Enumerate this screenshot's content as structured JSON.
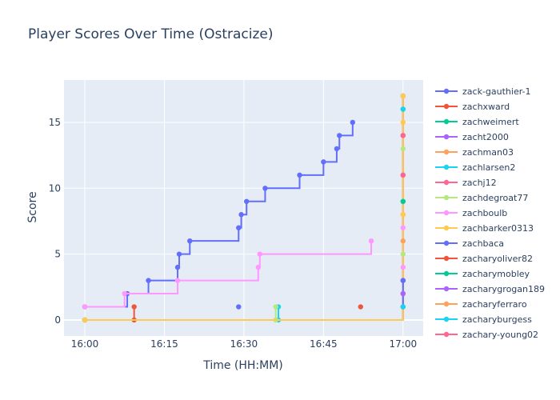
{
  "chart_data": {
    "type": "line",
    "line_shape": "step",
    "title": "Player Scores Over Time (Ostracize)",
    "xlabel": "Time (HH:MM)",
    "ylabel": "Score",
    "x_ticks": [
      "16:00",
      "16:15",
      "16:30",
      "16:45",
      "17:00"
    ],
    "x_range_minutes": [
      -4,
      4
    ],
    "y_ticks": [
      0,
      5,
      10,
      15
    ],
    "ylim": [
      -1.2,
      18
    ],
    "grid": true,
    "legend_position": "right",
    "plot_background": "#e5ecf6",
    "series": [
      {
        "name": "zack-gauthier-1",
        "color": "#636efa",
        "points": [
          [
            0,
            1
          ],
          [
            8,
            2
          ],
          [
            12,
            3
          ],
          [
            17.5,
            4
          ],
          [
            17.8,
            5
          ],
          [
            19.8,
            6
          ],
          [
            29,
            7
          ],
          [
            29.5,
            8
          ],
          [
            30.5,
            9
          ],
          [
            34,
            10
          ],
          [
            40.5,
            11
          ],
          [
            45,
            12
          ],
          [
            47.5,
            13
          ],
          [
            48,
            14
          ],
          [
            50.5,
            15
          ]
        ],
        "extra_points": [
          [
            29,
            1
          ]
        ]
      },
      {
        "name": "zachxward",
        "color": "#ef553b",
        "points": [
          [
            9.3,
            1
          ],
          [
            9.3,
            0
          ]
        ],
        "extra_points": [
          [
            52,
            1
          ]
        ]
      },
      {
        "name": "zachweimert",
        "color": "#00cc96",
        "points": [
          [
            0,
            0
          ],
          [
            60,
            2
          ],
          [
            60,
            17
          ]
        ]
      },
      {
        "name": "zacht2000",
        "color": "#ab63fa",
        "points": [
          [
            0,
            0
          ],
          [
            60,
            17
          ]
        ]
      },
      {
        "name": "zachman03",
        "color": "#ffa15a",
        "points": [
          [
            0,
            0
          ],
          [
            60,
            17
          ]
        ]
      },
      {
        "name": "zachlarsen2",
        "color": "#19d3f3",
        "points": [
          [
            0,
            0
          ],
          [
            36.5,
            0
          ],
          [
            36.5,
            1
          ]
        ]
      },
      {
        "name": "zachj12",
        "color": "#ff6692",
        "points": [
          [
            0,
            0
          ],
          [
            60,
            17
          ]
        ]
      },
      {
        "name": "zachdegroat77",
        "color": "#b6e880",
        "points": [
          [
            0,
            0
          ],
          [
            36,
            0
          ],
          [
            36,
            1
          ]
        ]
      },
      {
        "name": "zachboulb",
        "color": "#ff97ff",
        "points": [
          [
            0,
            1
          ],
          [
            7.5,
            2
          ],
          [
            17.5,
            3
          ],
          [
            32.7,
            4
          ],
          [
            33,
            5
          ],
          [
            54,
            6
          ]
        ]
      },
      {
        "name": "zachbarker0313",
        "color": "#fecb52",
        "points": [
          [
            0,
            0
          ],
          [
            60,
            17
          ]
        ]
      },
      {
        "name": "zachbaca",
        "color": "#636efa",
        "points": [
          [
            60,
            1
          ],
          [
            60,
            3
          ]
        ]
      },
      {
        "name": "zacharyoliver82",
        "color": "#ef553b",
        "points": []
      },
      {
        "name": "zacharymobley",
        "color": "#00cc96",
        "points": [
          [
            60,
            9
          ]
        ]
      },
      {
        "name": "zacharygrogan189",
        "color": "#ab63fa",
        "points": [
          [
            60,
            14
          ]
        ]
      },
      {
        "name": "zacharyferraro",
        "color": "#ffa15a",
        "points": [
          [
            60,
            8
          ]
        ]
      },
      {
        "name": "zacharyburgess",
        "color": "#19d3f3",
        "points": [
          [
            60,
            16
          ]
        ]
      },
      {
        "name": "zachary-young02",
        "color": "#ff6692",
        "points": [
          [
            60,
            11
          ]
        ]
      }
    ],
    "vertical_stack_points": [
      {
        "y": 1,
        "color": "#19d3f3"
      },
      {
        "y": 2,
        "color": "#ab63fa"
      },
      {
        "y": 3,
        "color": "#636efa"
      },
      {
        "y": 4,
        "color": "#ff97ff"
      },
      {
        "y": 5,
        "color": "#b6e880"
      },
      {
        "y": 6,
        "color": "#ffa15a"
      },
      {
        "y": 7,
        "color": "#ff97ff"
      },
      {
        "y": 8,
        "color": "#fecb52"
      },
      {
        "y": 9,
        "color": "#00cc96"
      },
      {
        "y": 11,
        "color": "#ff6692"
      },
      {
        "y": 13,
        "color": "#b6e880"
      },
      {
        "y": 14,
        "color": "#ff6692"
      },
      {
        "y": 15,
        "color": "#fecb52"
      },
      {
        "y": 16,
        "color": "#19d3f3"
      },
      {
        "y": 17,
        "color": "#fecb52"
      }
    ]
  }
}
